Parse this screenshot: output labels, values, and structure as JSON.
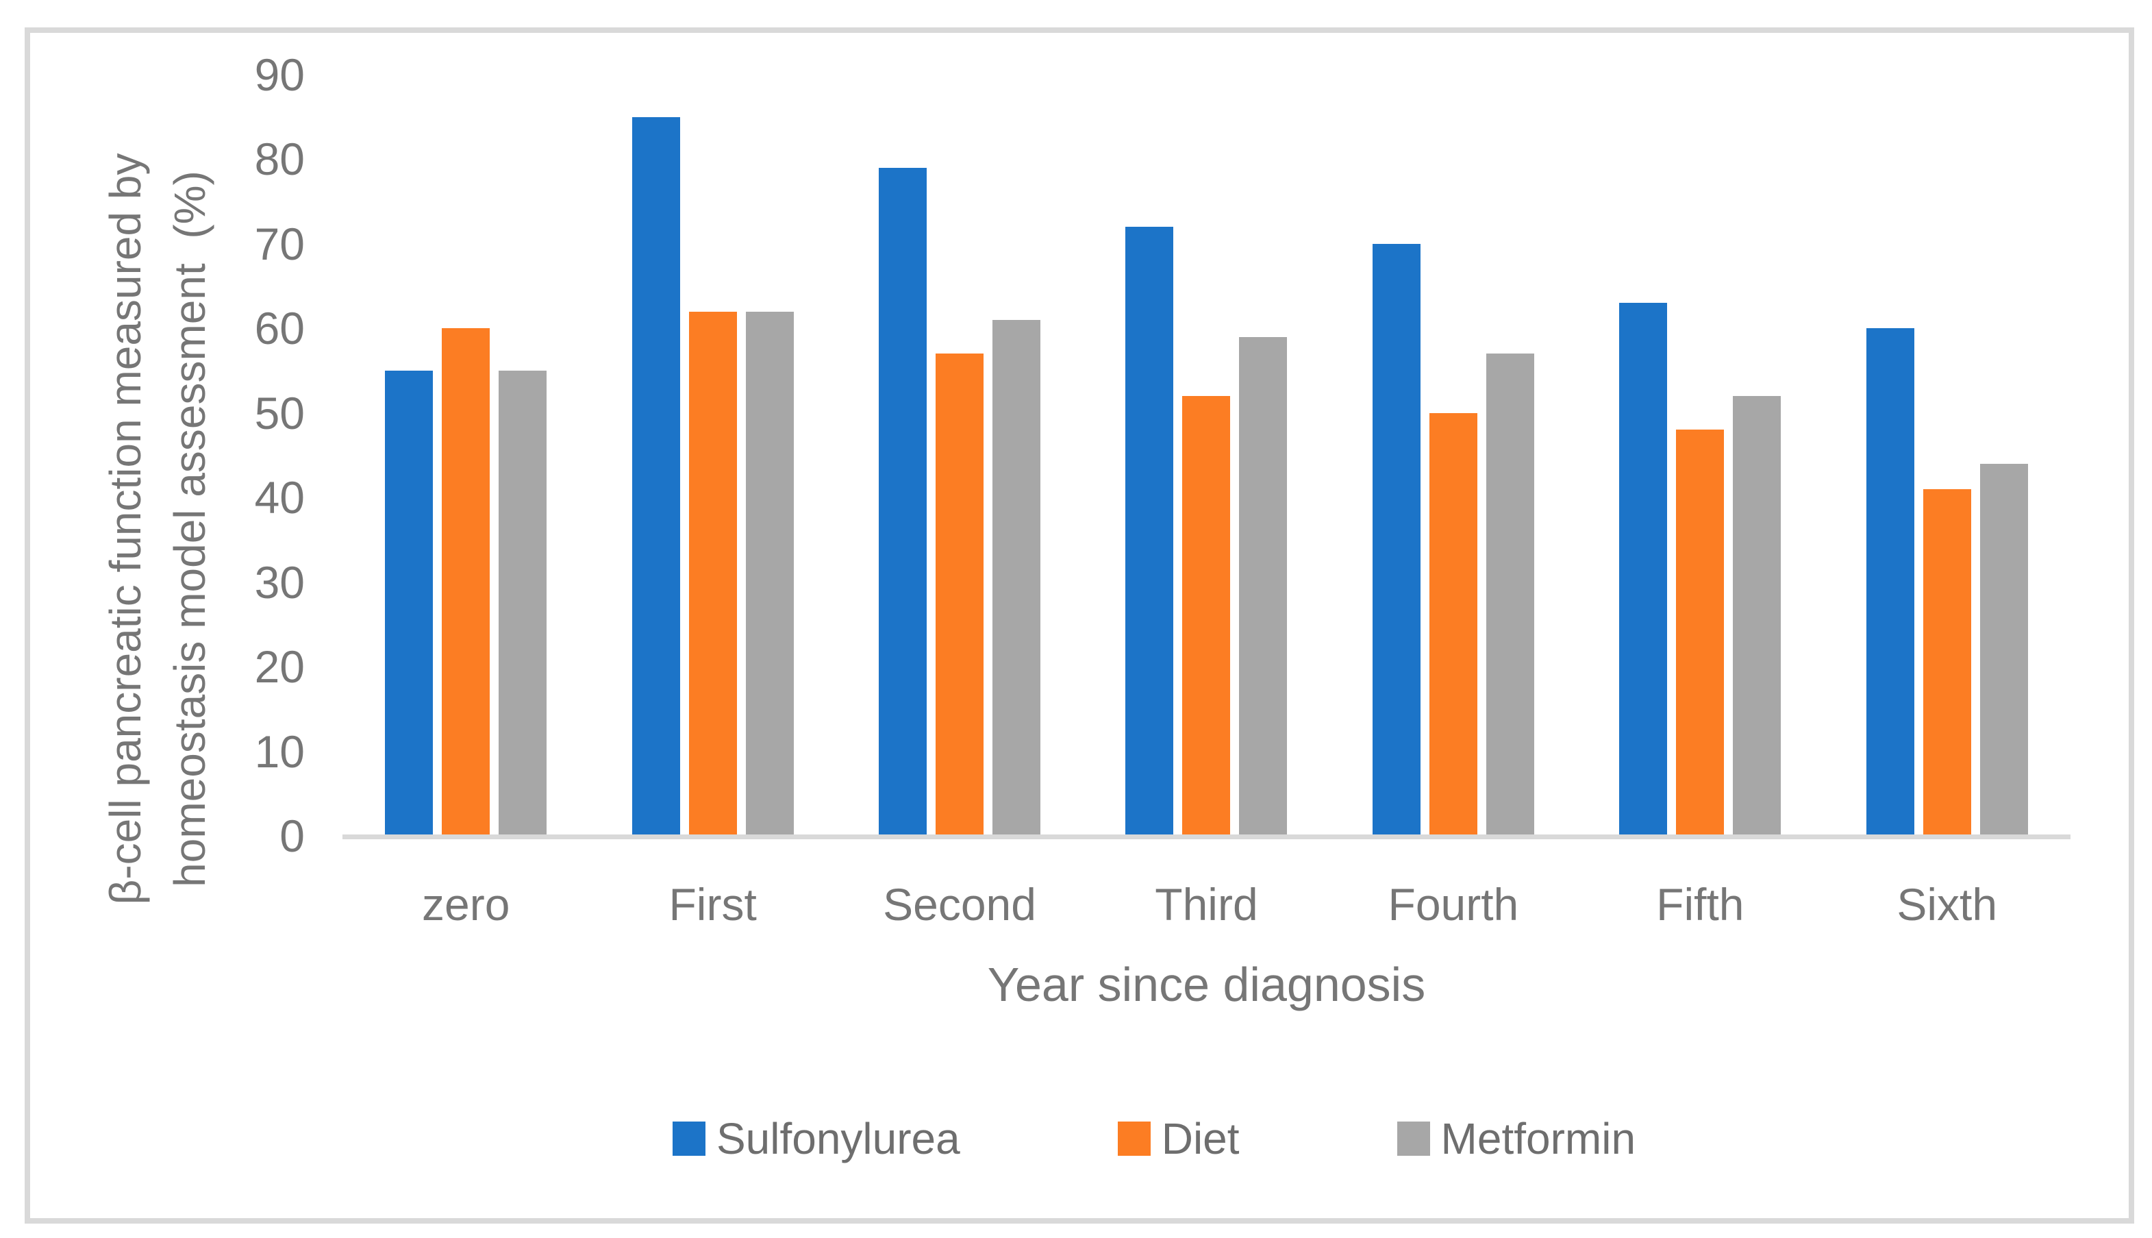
{
  "chart_data": {
    "type": "bar",
    "title": "",
    "categories": [
      "zero",
      "First",
      "Second",
      "Third",
      "Fourth",
      "Fifth",
      "Sixth"
    ],
    "series": [
      {
        "name": "Sulfonylurea",
        "color": "#1C74C8",
        "values": [
          55,
          85,
          79,
          72,
          70,
          63,
          60
        ]
      },
      {
        "name": "Diet",
        "color": "#FC7D23",
        "values": [
          60,
          62,
          57,
          52,
          50,
          48,
          41
        ]
      },
      {
        "name": "Metformin",
        "color": "#A7A7A7",
        "values": [
          55,
          62,
          61,
          59,
          57,
          52,
          44
        ]
      }
    ],
    "xlabel": "Year since diagnosis",
    "ylabel_line1": "β-cell pancreatic function measured by",
    "ylabel_line2": "homeostasis model assessment  (%)",
    "ylim": [
      0,
      90
    ],
    "ytick_step": 10,
    "grid": false,
    "legend_position": "bottom",
    "axis_line_color": "#D9D9D9",
    "frame_color": "#D9D9D9",
    "text_color": "#767676"
  }
}
